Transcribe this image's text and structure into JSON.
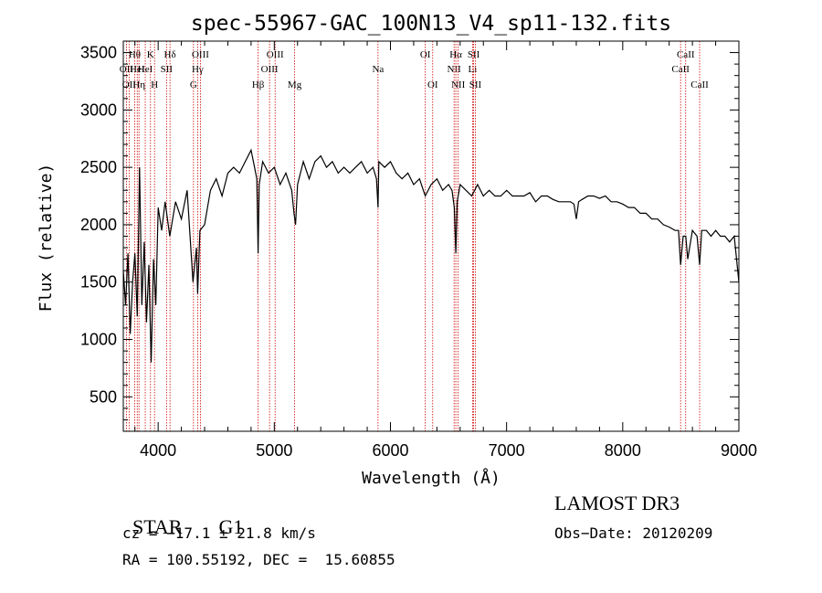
{
  "chart_data": {
    "type": "line",
    "title": "spec-55967-GAC_100N13_V4_sp11-132.fits",
    "xlabel": "Wavelength (Å)",
    "ylabel": "Flux (relative)",
    "xlim": [
      3700,
      9000
    ],
    "ylim": [
      200,
      3600
    ],
    "x_ticks": [
      4000,
      5000,
      6000,
      7000,
      8000,
      9000
    ],
    "y_ticks": [
      500,
      1000,
      1500,
      2000,
      2500,
      3000,
      3500
    ],
    "series": [
      {
        "name": "spectrum",
        "color": "#000000",
        "x": [
          3700,
          3720,
          3740,
          3760,
          3780,
          3800,
          3820,
          3840,
          3860,
          3880,
          3900,
          3920,
          3940,
          3960,
          3980,
          4000,
          4030,
          4060,
          4100,
          4150,
          4200,
          4250,
          4300,
          4330,
          4340,
          4360,
          4400,
          4450,
          4500,
          4550,
          4600,
          4650,
          4700,
          4750,
          4800,
          4830,
          4850,
          4861,
          4870,
          4900,
          4950,
          5000,
          5050,
          5100,
          5150,
          5170,
          5183,
          5200,
          5250,
          5300,
          5350,
          5400,
          5450,
          5500,
          5550,
          5600,
          5650,
          5700,
          5750,
          5800,
          5850,
          5880,
          5893,
          5900,
          5950,
          6000,
          6050,
          6100,
          6150,
          6200,
          6250,
          6300,
          6350,
          6400,
          6450,
          6500,
          6530,
          6550,
          6563,
          6575,
          6600,
          6650,
          6700,
          6750,
          6800,
          6850,
          6900,
          6950,
          7000,
          7050,
          7100,
          7150,
          7200,
          7250,
          7300,
          7350,
          7400,
          7450,
          7500,
          7550,
          7580,
          7600,
          7620,
          7650,
          7700,
          7750,
          7800,
          7850,
          7900,
          7950,
          8000,
          8050,
          8100,
          8150,
          8200,
          8250,
          8300,
          8350,
          8400,
          8450,
          8480,
          8498,
          8520,
          8542,
          8560,
          8600,
          8640,
          8662,
          8680,
          8720,
          8760,
          8800,
          8840,
          8880,
          8920,
          8960,
          9000
        ],
        "y": [
          1600,
          1300,
          1750,
          1050,
          1500,
          1750,
          1200,
          2500,
          1300,
          1850,
          1150,
          1650,
          800,
          1700,
          1300,
          2150,
          1950,
          2200,
          1900,
          2200,
          2050,
          2300,
          1500,
          1800,
          1400,
          1950,
          2000,
          2300,
          2400,
          2250,
          2450,
          2500,
          2450,
          2550,
          2650,
          2500,
          2400,
          1750,
          2350,
          2550,
          2450,
          2500,
          2350,
          2450,
          2300,
          2100,
          2000,
          2350,
          2550,
          2400,
          2550,
          2600,
          2500,
          2550,
          2450,
          2500,
          2450,
          2500,
          2550,
          2450,
          2500,
          2400,
          2150,
          2550,
          2500,
          2550,
          2450,
          2400,
          2450,
          2350,
          2400,
          2250,
          2350,
          2400,
          2300,
          2350,
          2300,
          2150,
          1750,
          2200,
          2350,
          2300,
          2250,
          2350,
          2250,
          2300,
          2250,
          2250,
          2300,
          2250,
          2250,
          2250,
          2280,
          2200,
          2250,
          2250,
          2220,
          2200,
          2200,
          2200,
          2180,
          2050,
          2200,
          2220,
          2250,
          2250,
          2230,
          2250,
          2200,
          2200,
          2180,
          2150,
          2150,
          2100,
          2100,
          2050,
          2050,
          2000,
          1980,
          1950,
          1950,
          1650,
          1900,
          1900,
          1700,
          1950,
          1900,
          1650,
          1950,
          1950,
          1900,
          1950,
          1900,
          1900,
          1850,
          1900,
          1500
        ]
      }
    ],
    "lines": [
      {
        "wavelength": 3727,
        "label": "OII",
        "row": 1
      },
      {
        "wavelength": 3750,
        "label": "OII",
        "row": 2
      },
      {
        "wavelength": 3798,
        "label": "Hθ",
        "row": 0
      },
      {
        "wavelength": 3820,
        "label": "HeI",
        "row": 1
      },
      {
        "wavelength": 3835,
        "label": "Hη",
        "row": 2
      },
      {
        "wavelength": 3889,
        "label": "HeI",
        "row": 1
      },
      {
        "wavelength": 3934,
        "label": "K",
        "row": 0
      },
      {
        "wavelength": 3969,
        "label": "H",
        "row": 2
      },
      {
        "wavelength": 4072,
        "label": "SII",
        "row": 1
      },
      {
        "wavelength": 4102,
        "label": "Hδ",
        "row": 0
      },
      {
        "wavelength": 4304,
        "label": "G",
        "row": 2
      },
      {
        "wavelength": 4340,
        "label": "Hγ",
        "row": 1
      },
      {
        "wavelength": 4364,
        "label": "OIII",
        "row": 0
      },
      {
        "wavelength": 4861,
        "label": "Hβ",
        "row": 2
      },
      {
        "wavelength": 4959,
        "label": "OIII",
        "row": 1
      },
      {
        "wavelength": 5007,
        "label": "OIII",
        "row": 0
      },
      {
        "wavelength": 5175,
        "label": "Mg",
        "row": 2
      },
      {
        "wavelength": 5893,
        "label": "Na",
        "row": 1
      },
      {
        "wavelength": 6300,
        "label": "OI",
        "row": 0
      },
      {
        "wavelength": 6364,
        "label": "OI",
        "row": 2
      },
      {
        "wavelength": 6548,
        "label": "NII",
        "row": 1
      },
      {
        "wavelength": 6563,
        "label": "Hα",
        "row": 0
      },
      {
        "wavelength": 6583,
        "label": "NII",
        "row": 2
      },
      {
        "wavelength": 6716,
        "label": "SII",
        "row": 0
      },
      {
        "wavelength": 6707,
        "label": "Li",
        "row": 1
      },
      {
        "wavelength": 6731,
        "label": "SII",
        "row": 2
      },
      {
        "wavelength": 8498,
        "label": "CaII",
        "row": 1
      },
      {
        "wavelength": 8542,
        "label": "CaII",
        "row": 0
      },
      {
        "wavelength": 8662,
        "label": "CaII",
        "row": 2
      }
    ],
    "line_color": "#cc0000"
  },
  "info": {
    "class": "STAR",
    "subclass": "G1",
    "survey": "LAMOST DR3",
    "cz": "cz = −17.1 ± 21.8 km/s",
    "obsdate": "Obs−Date: 20120209",
    "radec": "RA = 100.55192, DEC =  15.60855"
  }
}
